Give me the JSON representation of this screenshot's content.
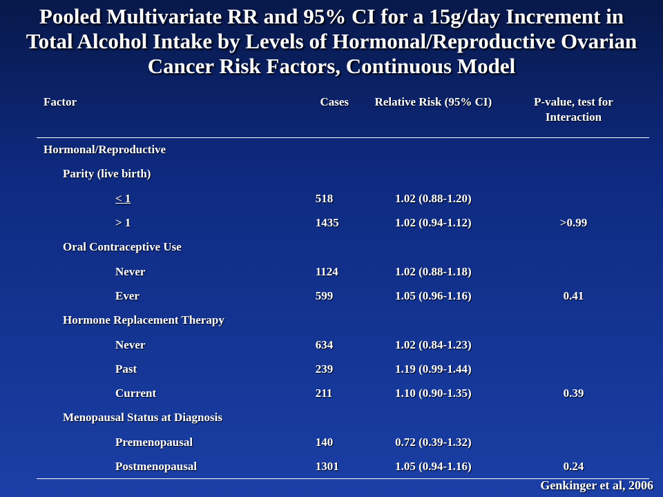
{
  "title": "Pooled Multivariate RR and 95% CI for a 15g/day Increment in Total Alcohol Intake by Levels of Hormonal/Reproductive Ovarian Cancer Risk Factors, Continuous Model",
  "table": {
    "headers": {
      "factor": "Factor",
      "cases": "Cases",
      "rr": "Relative Risk (95% CI)",
      "pvalue_line1": "P-value, test for",
      "pvalue_line2": "Interaction"
    },
    "section": "Hormonal/Reproductive",
    "groups": [
      {
        "label": "Parity (live birth)",
        "rows": [
          {
            "level": "< 1",
            "cases": "518",
            "rr": "1.02 (0.88-1.20)",
            "p": ""
          },
          {
            "level": "> 1",
            "cases": "1435",
            "rr": "1.02 (0.94-1.12)",
            "p": ">0.99"
          }
        ]
      },
      {
        "label": "Oral Contraceptive Use",
        "rows": [
          {
            "level": "Never",
            "cases": "1124",
            "rr": "1.02 (0.88-1.18)",
            "p": ""
          },
          {
            "level": "Ever",
            "cases": "599",
            "rr": "1.05 (0.96-1.16)",
            "p": "0.41"
          }
        ]
      },
      {
        "label": "Hormone Replacement Therapy",
        "rows": [
          {
            "level": "Never",
            "cases": "634",
            "rr": "1.02 (0.84-1.23)",
            "p": ""
          },
          {
            "level": "Past",
            "cases": "239",
            "rr": "1.19 (0.99-1.44)",
            "p": ""
          },
          {
            "level": "Current",
            "cases": "211",
            "rr": "1.10 (0.90-1.35)",
            "p": "0.39"
          }
        ]
      },
      {
        "label": "Menopausal Status at Diagnosis",
        "rows": [
          {
            "level": "Premenopausal",
            "cases": "140",
            "rr": "0.72 (0.39-1.32)",
            "p": ""
          },
          {
            "level": "Postmenopausal",
            "cases": "1301",
            "rr": "1.05 (0.94-1.16)",
            "p": "0.24"
          }
        ]
      }
    ]
  },
  "citation": "Genkinger et al, 2006"
}
